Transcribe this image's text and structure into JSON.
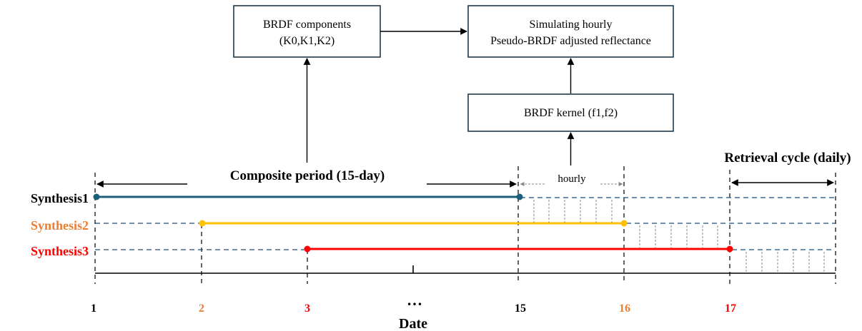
{
  "boxes": {
    "brdf_components": {
      "line1": "BRDF components",
      "line2": "(K0,K1,K2)"
    },
    "simulating": {
      "line1": "Simulating hourly",
      "line2": "Pseudo-BRDF adjusted reflectance"
    },
    "kernel": {
      "line1": "BRDF kernel (f1,f2)"
    }
  },
  "labels": {
    "composite_period": "Composite period (15-day)",
    "hourly": "hourly",
    "retrieval_cycle": "Retrieval cycle (daily)",
    "ellipsis": "…",
    "x_axis": "Date"
  },
  "syntheses": [
    {
      "name": "Synthesis1",
      "color": "#1b5f7a",
      "label_color": "#000000",
      "start_day": "1",
      "end_day": "15"
    },
    {
      "name": "Synthesis2",
      "color": "#ffc000",
      "label_color": "#ed7d31",
      "start_day": "2",
      "end_day": "16"
    },
    {
      "name": "Synthesis3",
      "color": "#ff0000",
      "label_color": "#ff0000",
      "start_day": "3",
      "end_day": "17"
    }
  ],
  "dates": [
    {
      "label": "1",
      "color": "#000000"
    },
    {
      "label": "2",
      "color": "#ed7d31"
    },
    {
      "label": "3",
      "color": "#ff0000"
    },
    {
      "label": "15",
      "color": "#000000"
    },
    {
      "label": "16",
      "color": "#ed7d31"
    },
    {
      "label": "17",
      "color": "#ff0000"
    }
  ],
  "colors": {
    "dashed_line": "#1f4e79",
    "hourly_ticks": "#888888",
    "box_border": "#1f3a4a"
  }
}
